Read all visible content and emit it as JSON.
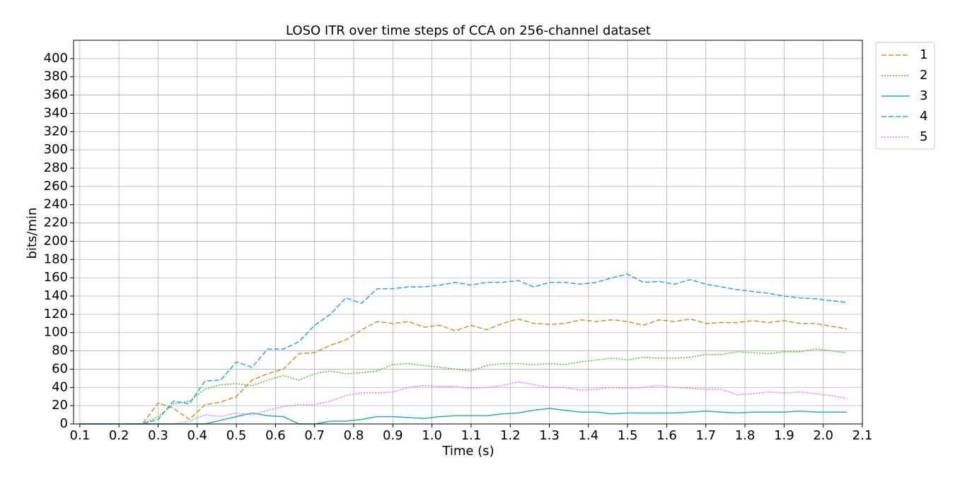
{
  "chart_data": {
    "type": "line",
    "title": "LOSO ITR over time steps of CCA on 256-channel dataset",
    "xlabel": "Time (s)",
    "ylabel": "bits/min",
    "x": [
      0.1,
      0.14,
      0.18,
      0.22,
      0.26,
      0.3,
      0.34,
      0.38,
      0.42,
      0.46,
      0.5,
      0.54,
      0.58,
      0.62,
      0.66,
      0.7,
      0.74,
      0.78,
      0.82,
      0.86,
      0.9,
      0.94,
      0.98,
      1.02,
      1.06,
      1.1,
      1.14,
      1.18,
      1.22,
      1.26,
      1.3,
      1.34,
      1.38,
      1.42,
      1.46,
      1.5,
      1.54,
      1.58,
      1.62,
      1.66,
      1.7,
      1.74,
      1.78,
      1.82,
      1.86,
      1.9,
      1.94,
      1.98,
      2.02,
      2.06
    ],
    "series": [
      {
        "name": "1",
        "color": "#bc9a3a",
        "linestyle": "dashed",
        "values": [
          0,
          0,
          0,
          0,
          0,
          23,
          17,
          5,
          21,
          24,
          30,
          48,
          55,
          60,
          77,
          78,
          86,
          92,
          103,
          112,
          110,
          112,
          106,
          108,
          102,
          108,
          103,
          110,
          115,
          110,
          109,
          110,
          114,
          112,
          114,
          112,
          108,
          114,
          112,
          115,
          110,
          111,
          111,
          113,
          111,
          113,
          110,
          110,
          107,
          104
        ]
      },
      {
        "name": "2",
        "color": "#5cb82c",
        "linestyle": "dotted",
        "values": [
          0,
          0,
          0,
          0,
          0,
          8,
          22,
          25,
          38,
          43,
          44,
          42,
          48,
          53,
          48,
          55,
          58,
          55,
          56,
          58,
          65,
          66,
          64,
          62,
          60,
          58,
          64,
          66,
          66,
          65,
          66,
          65,
          68,
          70,
          72,
          70,
          73,
          72,
          72,
          73,
          76,
          76,
          79,
          78,
          77,
          79,
          79,
          82,
          80,
          78
        ]
      },
      {
        "name": "3",
        "color": "#2fb09a",
        "linestyle": "solid",
        "values": [
          0,
          0,
          0,
          0,
          0,
          0,
          0,
          0,
          0,
          4,
          8,
          12,
          9,
          8,
          0,
          0,
          3,
          3,
          5,
          8,
          8,
          7,
          6,
          8,
          9,
          9,
          9,
          11,
          12,
          15,
          17,
          15,
          13,
          13,
          11,
          12,
          12,
          12,
          12,
          13,
          14,
          13,
          12,
          13,
          13,
          13,
          14,
          13,
          13,
          13
        ]
      },
      {
        "name": "4",
        "color": "#2ea5dd",
        "linestyle": "dashed",
        "values": [
          0,
          0,
          0,
          0,
          0,
          5,
          25,
          22,
          47,
          48,
          68,
          62,
          82,
          82,
          90,
          108,
          120,
          138,
          132,
          148,
          148,
          150,
          150,
          152,
          155,
          152,
          155,
          155,
          157,
          150,
          155,
          155,
          153,
          155,
          160,
          164,
          155,
          156,
          153,
          158,
          153,
          150,
          147,
          145,
          143,
          140,
          138,
          137,
          135,
          133
        ]
      },
      {
        "name": "5",
        "color": "#e07be0",
        "linestyle": "dotted",
        "values": [
          0,
          0,
          0,
          0,
          0,
          0,
          0,
          3,
          10,
          8,
          12,
          10,
          15,
          19,
          21,
          21,
          25,
          31,
          34,
          34,
          35,
          40,
          42,
          41,
          41,
          39,
          40,
          42,
          46,
          43,
          40,
          40,
          37,
          38,
          40,
          39,
          40,
          42,
          40,
          39,
          38,
          38,
          32,
          33,
          35,
          34,
          35,
          33,
          31,
          28
        ]
      }
    ],
    "xlim": [
      0.084,
      2.1
    ],
    "xticks": [
      0.1,
      0.2,
      0.3,
      0.4,
      0.5,
      0.6,
      0.7,
      0.8,
      0.9,
      {
        "value": 1,
        "label": "1.0"
      },
      1.1,
      1.2,
      1.3,
      1.4,
      1.5,
      1.6,
      1.7,
      1.8,
      1.9,
      {
        "value": 2,
        "label": "2.0"
      },
      2.1
    ],
    "ylim": [
      0,
      420
    ],
    "yticks": [
      0,
      20,
      40,
      60,
      80,
      100,
      120,
      140,
      160,
      180,
      200,
      220,
      240,
      260,
      280,
      300,
      320,
      340,
      360,
      380,
      400
    ],
    "grid": true,
    "legend": "outside upper right"
  }
}
